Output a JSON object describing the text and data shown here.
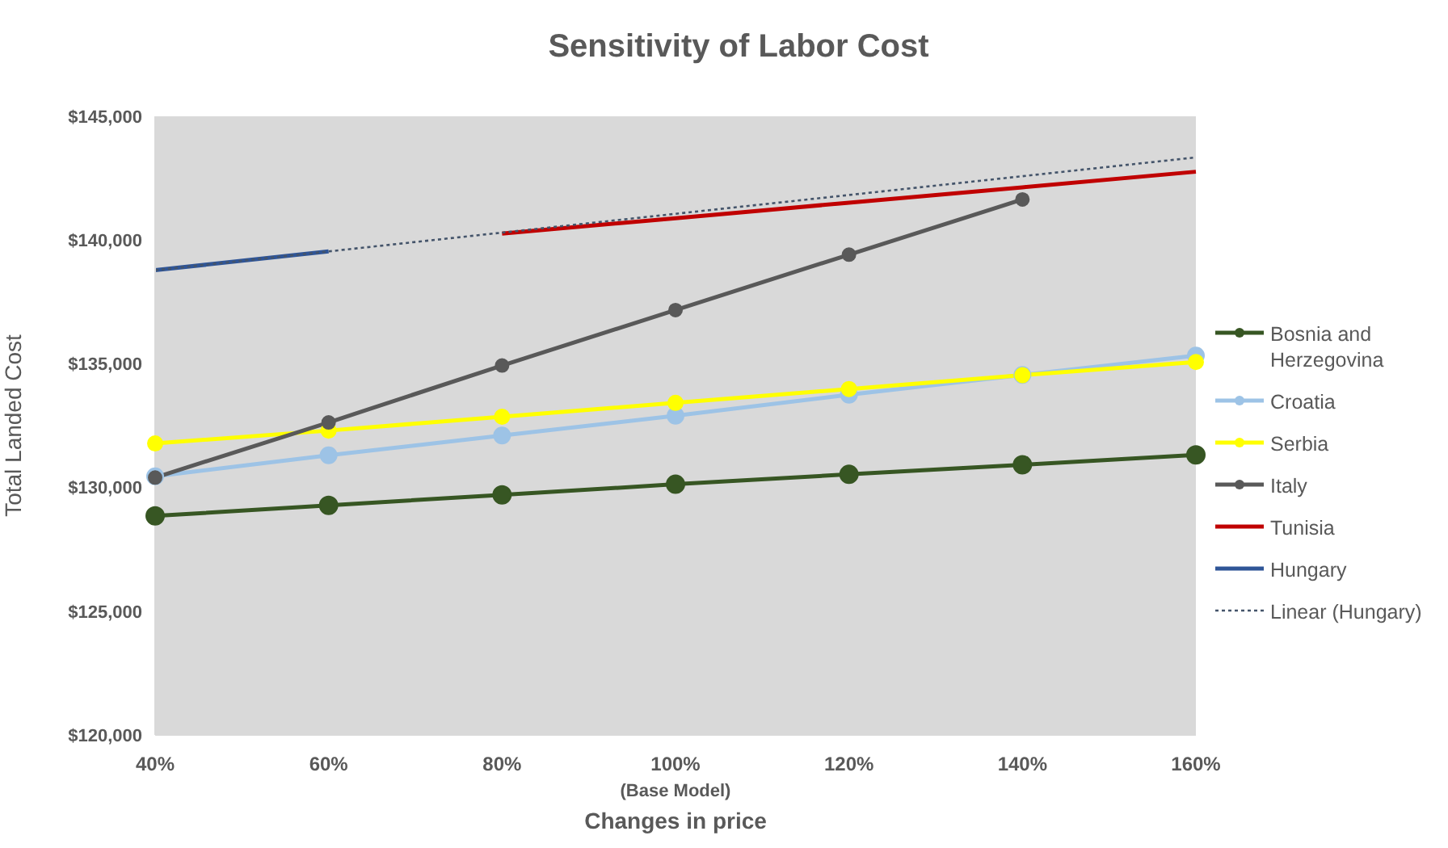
{
  "chart_data": {
    "type": "line",
    "title": "Sensitivity of Labor Cost",
    "xlabel": "Changes in price",
    "ylabel": "Total Landed Cost",
    "categories": [
      "40%",
      "60%",
      "80%",
      "100%\n(Base Model)",
      "120%",
      "140%",
      "160%"
    ],
    "ylim": [
      120000,
      145000
    ],
    "yticks": [
      {
        "value": 120000,
        "label": "$120,000"
      },
      {
        "value": 125000,
        "label": "$125,000"
      },
      {
        "value": 130000,
        "label": "$130,000"
      },
      {
        "value": 135000,
        "label": "$135,000"
      },
      {
        "value": 140000,
        "label": "$140,000"
      },
      {
        "value": 145000,
        "label": "$145,000"
      }
    ],
    "grid": false,
    "legend": "right",
    "marker": "circle",
    "line_style": "solid",
    "series": [
      {
        "name": "Bosnia and Herzegovina",
        "color": "#375623",
        "values": [
          128850,
          129280,
          129700,
          130130,
          130530,
          130920,
          131320
        ]
      },
      {
        "name": "Croatia",
        "color": "#9dc3e6",
        "values": [
          130450,
          131300,
          132100,
          132900,
          133750,
          134550,
          135330
        ]
      },
      {
        "name": "Serbia",
        "color": "#ffff00",
        "values": [
          131780,
          132300,
          132860,
          133420,
          133980,
          134540,
          135070
        ]
      },
      {
        "name": "Italy",
        "color": "#595959",
        "values": [
          130400,
          132630,
          134930,
          137170,
          139410,
          141640,
          null
        ]
      },
      {
        "name": "Tunisia",
        "color": "#c00000",
        "marker": "none",
        "values": [
          null,
          null,
          140260,
          140880,
          141510,
          142130,
          142760
        ]
      },
      {
        "name": "Hungary",
        "color": "#2f5597",
        "marker": "none",
        "values": [
          138780,
          139540,
          null,
          null,
          null,
          null,
          null
        ]
      },
      {
        "name": "Linear (Hungary)",
        "color": "#44546a",
        "marker": "none",
        "line_style": "dotted",
        "x": [
          "40%",
          "160%"
        ],
        "values": [
          138780,
          143340
        ]
      }
    ]
  }
}
